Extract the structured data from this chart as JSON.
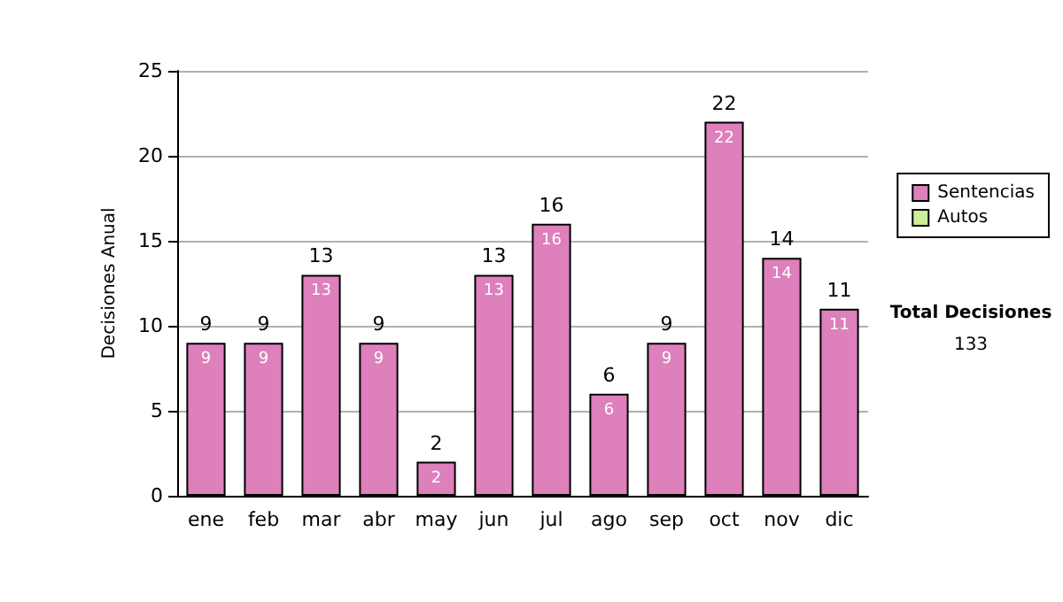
{
  "chart_data": {
    "type": "bar",
    "stacked": true,
    "ylabel": "Decisiones Anual",
    "categories": [
      "ene",
      "feb",
      "mar",
      "abr",
      "may",
      "jun",
      "jul",
      "ago",
      "sep",
      "oct",
      "nov",
      "dic"
    ],
    "series": [
      {
        "name": "Sentencias",
        "color": "#dd80bb",
        "values": [
          9,
          9,
          13,
          9,
          2,
          13,
          16,
          6,
          9,
          22,
          14,
          11
        ],
        "value_labels": [
          "9",
          "9",
          "13",
          "9",
          "2",
          "13",
          "16",
          "6",
          "9",
          "22",
          "14",
          "11"
        ]
      },
      {
        "name": "Autos",
        "color": "#ccee99",
        "values": [
          0,
          0,
          0,
          0,
          0,
          0,
          0,
          0,
          0,
          0,
          0,
          0
        ]
      }
    ],
    "totals": [
      "9",
      "9",
      "13",
      "9",
      "2",
      "13",
      "16",
      "6",
      "9",
      "22",
      "14",
      "11"
    ],
    "ylim": [
      0,
      25
    ],
    "yticks": [
      0,
      5,
      10,
      15,
      20,
      25
    ],
    "grid": "y",
    "legend": "right",
    "annotations": [
      "Total Decisiones",
      "133"
    ]
  }
}
